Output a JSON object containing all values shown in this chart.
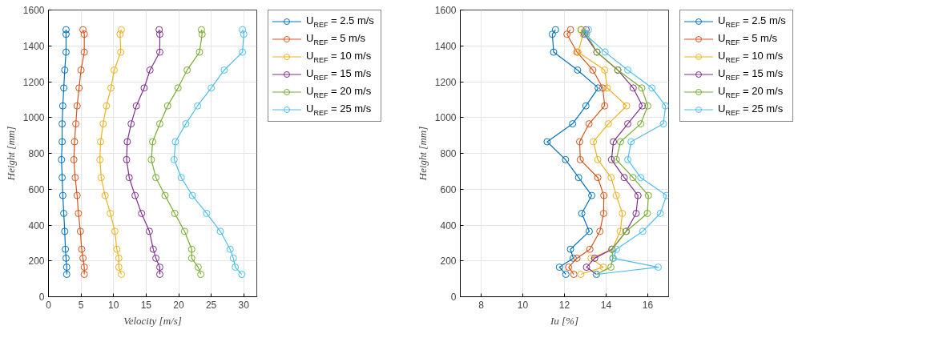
{
  "chart_data": [
    {
      "type": "line",
      "xlabel": "Velocity [m/s]",
      "ylabel": "Height [mm]",
      "xlim": [
        0,
        32
      ],
      "xticks": [
        0,
        5,
        10,
        15,
        20,
        25,
        30
      ],
      "ylim": [
        0,
        1600
      ],
      "yticks": [
        0,
        200,
        400,
        600,
        800,
        1000,
        1200,
        1400,
        1600
      ],
      "grid": true,
      "marker": "circle",
      "legend": "right",
      "line_style": "solid",
      "series": [
        {
          "name": "U$_{REF}$ = 2.5 m/s",
          "color": "#0072bd",
          "x": [
            2.8,
            2.8,
            2.7,
            2.6,
            2.5,
            2.35,
            2.2,
            2.1,
            2.0,
            2.1,
            2.1,
            2.2,
            2.35,
            2.5,
            2.7,
            2.7,
            2.7
          ],
          "values": [
            125,
            165,
            215,
            265,
            365,
            465,
            565,
            665,
            765,
            865,
            965,
            1065,
            1165,
            1265,
            1365,
            1465,
            1490
          ]
        },
        {
          "name": "U$_{REF}$ = 5 m/s",
          "color": "#d95319",
          "x": [
            5.5,
            5.5,
            5.3,
            5.1,
            4.9,
            4.6,
            4.4,
            4.1,
            3.9,
            4.0,
            4.2,
            4.4,
            4.7,
            5.0,
            5.5,
            5.5,
            5.3
          ],
          "values": [
            125,
            165,
            215,
            265,
            365,
            465,
            565,
            665,
            765,
            865,
            965,
            1065,
            1165,
            1265,
            1365,
            1465,
            1490
          ]
        },
        {
          "name": "U$_{REF}$ = 10 m/s",
          "color": "#edb120",
          "x": [
            11.2,
            10.8,
            10.8,
            10.5,
            10.2,
            9.5,
            8.7,
            8.1,
            7.9,
            8.0,
            8.4,
            8.9,
            9.6,
            10.1,
            11.1,
            11.0,
            11.2
          ],
          "values": [
            125,
            165,
            215,
            265,
            365,
            465,
            565,
            665,
            765,
            865,
            965,
            1065,
            1165,
            1265,
            1365,
            1465,
            1490
          ]
        },
        {
          "name": "U$_{REF}$ = 15 m/s",
          "color": "#7e2f8e",
          "x": [
            17.1,
            17.1,
            16.5,
            16.1,
            15.5,
            14.3,
            13.3,
            12.4,
            12.0,
            12.1,
            12.7,
            13.5,
            14.7,
            15.6,
            17.1,
            17.1,
            17.0
          ],
          "values": [
            125,
            165,
            215,
            265,
            365,
            465,
            565,
            665,
            765,
            865,
            965,
            1065,
            1165,
            1265,
            1365,
            1465,
            1490
          ]
        },
        {
          "name": "U$_{REF}$ = 20 m/s",
          "color": "#77ac30",
          "x": [
            23.4,
            23.0,
            22.0,
            22.0,
            20.9,
            19.4,
            17.9,
            16.5,
            15.8,
            16.0,
            17.1,
            18.3,
            19.9,
            21.3,
            23.2,
            23.6,
            23.5
          ],
          "values": [
            125,
            165,
            215,
            265,
            365,
            465,
            565,
            665,
            765,
            865,
            965,
            1065,
            1165,
            1265,
            1365,
            1465,
            1490
          ]
        },
        {
          "name": "U$_{REF}$ = 25 m/s",
          "color": "#4dbeee",
          "x": [
            29.7,
            28.7,
            28.4,
            27.9,
            26.4,
            24.3,
            22.1,
            20.4,
            19.3,
            19.5,
            21.1,
            22.9,
            25.0,
            27.0,
            29.8,
            30.0,
            29.8
          ],
          "values": [
            125,
            165,
            215,
            265,
            365,
            465,
            565,
            665,
            765,
            865,
            965,
            1065,
            1165,
            1265,
            1365,
            1465,
            1490
          ]
        }
      ]
    },
    {
      "type": "line",
      "xlabel": "Iu [%]",
      "ylabel": "Height [mm]",
      "xlim": [
        7,
        17
      ],
      "xticks": [
        8,
        10,
        12,
        14,
        16
      ],
      "ylim": [
        0,
        1600
      ],
      "yticks": [
        0,
        200,
        400,
        600,
        800,
        1000,
        1200,
        1400,
        1600
      ],
      "grid": true,
      "marker": "circle",
      "legend": "right",
      "line_style": "solid",
      "series": [
        {
          "name": "U$_{REF}$ = 2.5 m/s",
          "color": "#0072bd",
          "x": [
            12.07,
            11.76,
            12.42,
            12.29,
            13.19,
            12.83,
            13.31,
            12.68,
            12.05,
            11.17,
            12.39,
            13.03,
            13.62,
            12.63,
            11.48,
            11.42,
            11.57
          ],
          "values": [
            125,
            165,
            215,
            265,
            365,
            465,
            565,
            665,
            765,
            865,
            965,
            1065,
            1165,
            1265,
            1365,
            1465,
            1490
          ]
        },
        {
          "name": "U$_{REF}$ = 5 m/s",
          "color": "#d95319",
          "x": [
            12.45,
            12.2,
            12.6,
            13.22,
            13.7,
            13.88,
            13.89,
            13.6,
            12.76,
            12.73,
            13.18,
            13.93,
            13.84,
            13.36,
            12.6,
            12.12,
            12.29
          ],
          "values": [
            125,
            165,
            215,
            265,
            365,
            465,
            565,
            665,
            765,
            865,
            965,
            1065,
            1165,
            1265,
            1365,
            1465,
            1490
          ]
        },
        {
          "name": "U$_{REF}$ = 10 m/s",
          "color": "#edb120",
          "x": [
            12.78,
            13.86,
            13.28,
            14.29,
            14.68,
            14.78,
            14.49,
            14.24,
            13.6,
            13.39,
            14.11,
            14.98,
            14.06,
            13.93,
            12.65,
            12.9,
            12.79
          ],
          "values": [
            125,
            165,
            215,
            265,
            365,
            465,
            565,
            665,
            765,
            865,
            965,
            1065,
            1165,
            1265,
            1365,
            1465,
            1490
          ]
        },
        {
          "name": "U$_{REF}$ = 15 m/s",
          "color": "#7e2f8e",
          "x": [
            13.53,
            13.06,
            13.45,
            14.28,
            14.96,
            15.44,
            15.53,
            14.87,
            14.26,
            14.35,
            15.04,
            15.74,
            15.3,
            14.56,
            13.56,
            12.96,
            13.04
          ],
          "values": [
            125,
            165,
            215,
            265,
            365,
            465,
            565,
            665,
            765,
            865,
            965,
            1065,
            1165,
            1265,
            1365,
            1465,
            1490
          ]
        },
        {
          "name": "U$_{REF}$ = 20 m/s",
          "color": "#77ac30",
          "x": [
            13.54,
            14.23,
            14.32,
            14.28,
            14.97,
            15.98,
            16.03,
            15.29,
            14.49,
            14.69,
            15.66,
            16.0,
            15.71,
            14.56,
            13.56,
            13.06,
            12.81
          ],
          "values": [
            125,
            165,
            215,
            265,
            365,
            465,
            565,
            665,
            765,
            865,
            965,
            1065,
            1165,
            1265,
            1365,
            1465,
            1490
          ]
        },
        {
          "name": "U$_{REF}$ = 25 m/s",
          "color": "#4dbeee",
          "x": [
            13.54,
            16.5,
            14.35,
            14.49,
            15.76,
            16.6,
            16.9,
            15.66,
            15.04,
            15.2,
            16.75,
            16.85,
            16.2,
            15.04,
            13.95,
            13.0,
            13.15
          ],
          "values": [
            125,
            165,
            215,
            265,
            365,
            465,
            565,
            665,
            765,
            865,
            965,
            1065,
            1165,
            1265,
            1365,
            1465,
            1490
          ]
        }
      ]
    }
  ]
}
